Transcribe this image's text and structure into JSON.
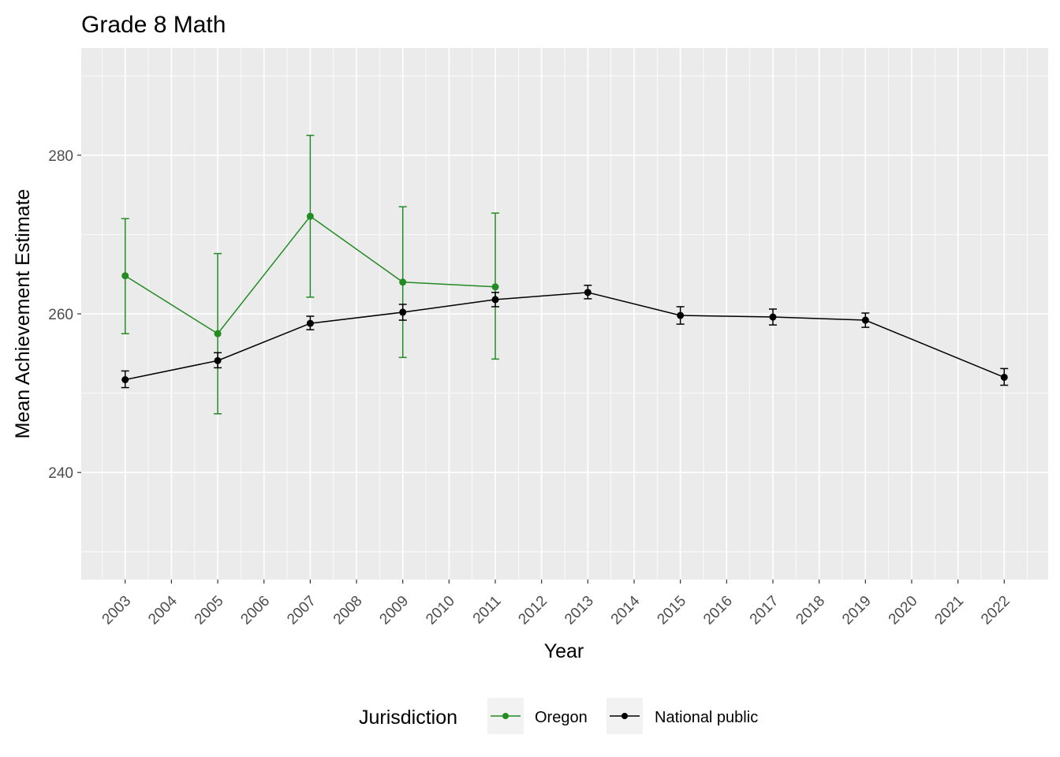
{
  "chart_data": {
    "type": "line",
    "title": "Grade 8 Math",
    "xlabel": "Year",
    "ylabel": "Mean Achievement Estimate",
    "ylim": [
      226.5,
      293.5
    ],
    "yticks": [
      240,
      260,
      280
    ],
    "x_categories": [
      "2003",
      "2004",
      "2005",
      "2006",
      "2007",
      "2008",
      "2009",
      "2010",
      "2011",
      "2012",
      "2013",
      "2014",
      "2015",
      "2016",
      "2017",
      "2018",
      "2019",
      "2020",
      "2021",
      "2022"
    ],
    "legend_title": "Jurisdiction",
    "legend_position": "bottom",
    "series": [
      {
        "name": "Oregon",
        "color": "#228B22",
        "points": [
          {
            "x": "2003",
            "y": 264.8,
            "lo": 257.5,
            "hi": 272.0
          },
          {
            "x": "2005",
            "y": 257.5,
            "lo": 247.4,
            "hi": 267.6
          },
          {
            "x": "2007",
            "y": 272.3,
            "lo": 262.1,
            "hi": 282.5
          },
          {
            "x": "2009",
            "y": 264.0,
            "lo": 254.5,
            "hi": 273.5
          },
          {
            "x": "2011",
            "y": 263.4,
            "lo": 254.3,
            "hi": 272.7
          }
        ]
      },
      {
        "name": "National public",
        "color": "#000000",
        "points": [
          {
            "x": "2003",
            "y": 251.7,
            "lo": 250.7,
            "hi": 252.8
          },
          {
            "x": "2005",
            "y": 254.1,
            "lo": 253.2,
            "hi": 255.1
          },
          {
            "x": "2007",
            "y": 258.8,
            "lo": 258.0,
            "hi": 259.7
          },
          {
            "x": "2009",
            "y": 260.2,
            "lo": 259.2,
            "hi": 261.2
          },
          {
            "x": "2011",
            "y": 261.8,
            "lo": 260.9,
            "hi": 262.7
          },
          {
            "x": "2013",
            "y": 262.7,
            "lo": 261.9,
            "hi": 263.6
          },
          {
            "x": "2015",
            "y": 259.8,
            "lo": 258.7,
            "hi": 260.9
          },
          {
            "x": "2017",
            "y": 259.6,
            "lo": 258.6,
            "hi": 260.6
          },
          {
            "x": "2019",
            "y": 259.2,
            "lo": 258.3,
            "hi": 260.1
          },
          {
            "x": "2022",
            "y": 252.0,
            "lo": 251.0,
            "hi": 253.1
          }
        ]
      }
    ]
  }
}
